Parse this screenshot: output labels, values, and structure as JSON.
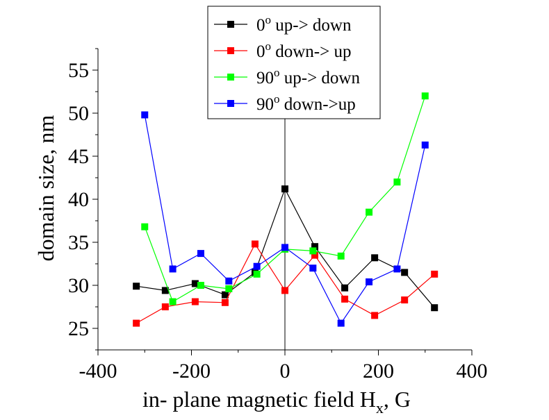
{
  "chart_data": {
    "type": "line",
    "xlabel_main": "in- plane magnetic field H",
    "xlabel_sub": "x",
    "xlabel_tail": ", G",
    "ylabel": "domain size, nm",
    "xlim": [
      -400,
      400
    ],
    "ylim": [
      22.5,
      57.5
    ],
    "xticks": [
      -400,
      -200,
      0,
      200,
      400
    ],
    "xtick_labels": [
      "-400",
      "-200",
      "0",
      "200",
      "400"
    ],
    "yticks": [
      25,
      30,
      35,
      40,
      45,
      50,
      55
    ],
    "ytick_labels": [
      "25",
      "30",
      "35",
      "40",
      "45",
      "50",
      "55"
    ],
    "grid": false,
    "legend_position": "top-center",
    "series": [
      {
        "name": "0° up-> down",
        "legend": {
          "angle": "0",
          "degree": "o",
          "rest": " up-> down"
        },
        "color": "#000000",
        "x": [
          -318,
          -256,
          -192,
          -128,
          -64,
          0,
          64,
          128,
          192,
          256,
          320
        ],
        "y": [
          29.9,
          29.4,
          30.2,
          28.9,
          31.5,
          41.2,
          34.5,
          29.7,
          33.2,
          31.5,
          27.4
        ]
      },
      {
        "name": "0° down-> up",
        "legend": {
          "angle": "0",
          "degree": "o",
          "rest": " down-> up"
        },
        "color": "#ff0000",
        "x": [
          -318,
          -256,
          -192,
          -128,
          -64,
          0,
          64,
          128,
          192,
          256,
          320
        ],
        "y": [
          25.6,
          27.5,
          28.1,
          28.0,
          34.8,
          29.4,
          33.5,
          28.4,
          26.5,
          28.3,
          31.3
        ]
      },
      {
        "name": "90° up-> down",
        "legend": {
          "angle": "90",
          "degree": "o",
          "rest": " up-> down"
        },
        "color": "#00ff00",
        "x": [
          -300,
          -240,
          -180,
          -120,
          -60,
          0,
          60,
          120,
          180,
          240,
          300
        ],
        "y": [
          36.8,
          28.1,
          30.0,
          29.6,
          31.3,
          34.2,
          34.0,
          33.4,
          38.5,
          42.0,
          52.0
        ]
      },
      {
        "name": "90° down->up",
        "legend": {
          "angle": "90",
          "degree": "o",
          "rest": " down->up"
        },
        "color": "#0000ff",
        "x": [
          -300,
          -240,
          -180,
          -120,
          -60,
          0,
          60,
          120,
          180,
          240,
          300
        ],
        "y": [
          49.8,
          31.9,
          33.7,
          30.5,
          32.2,
          34.4,
          32.0,
          25.6,
          30.4,
          31.9,
          46.3
        ]
      }
    ]
  }
}
